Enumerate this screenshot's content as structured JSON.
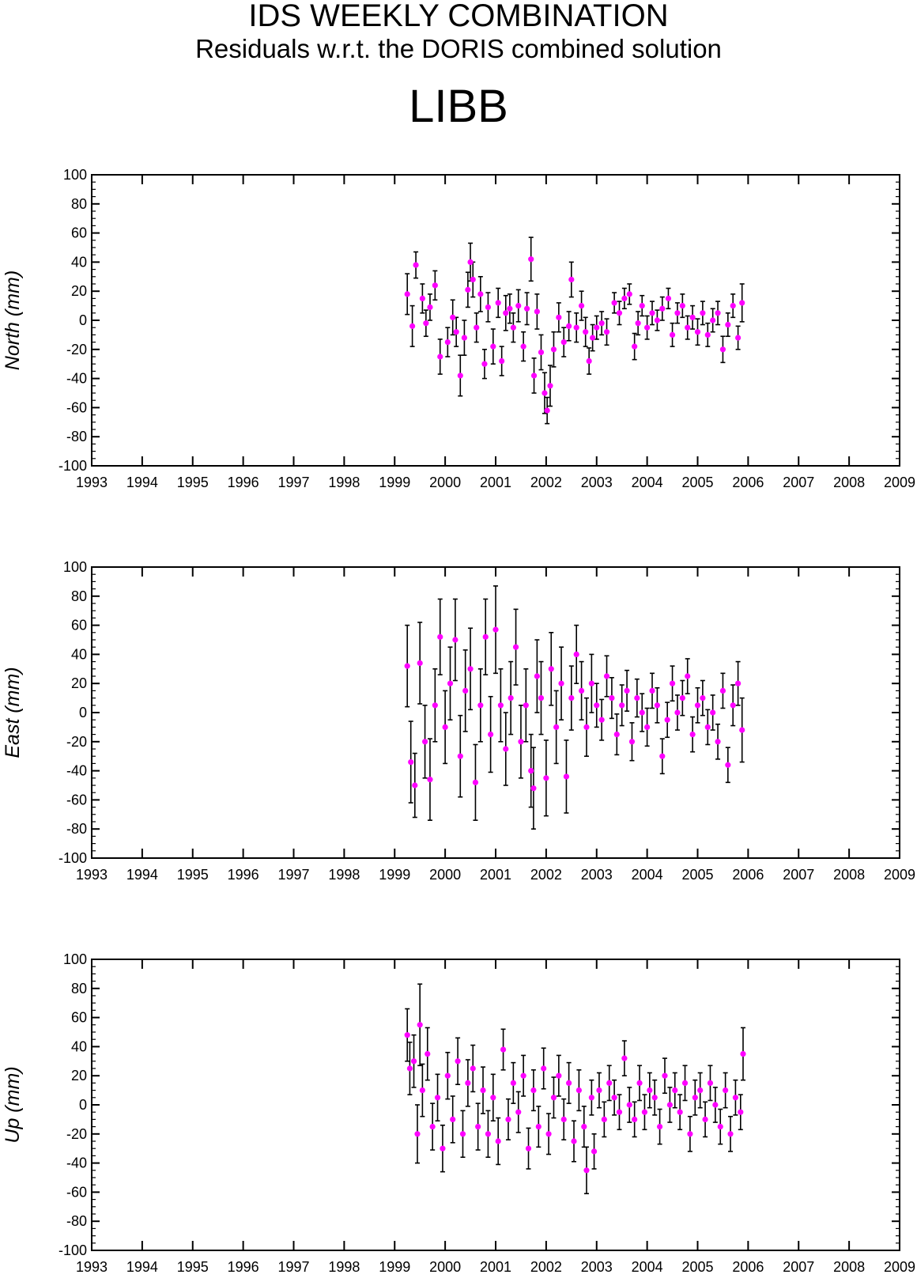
{
  "header": {
    "title": "IDS WEEKLY COMBINATION",
    "subtitle": "Residuals w.r.t. the DORIS combined solution",
    "station": "LIBB"
  },
  "colors": {
    "marker": "#ff00ff",
    "errorbar": "#000000",
    "axis": "#000000",
    "background": "#ffffff"
  },
  "chart_data": [
    {
      "type": "scatter",
      "component": "north",
      "ylabel": "North (mm)",
      "xlim": [
        1993,
        2009
      ],
      "ylim": [
        -100,
        100
      ],
      "x_ticks": [
        1993,
        1994,
        1995,
        1996,
        1997,
        1998,
        1999,
        2000,
        2001,
        2002,
        2003,
        2004,
        2005,
        2006,
        2007,
        2008,
        2009
      ],
      "y_ticks": [
        -100,
        -80,
        -60,
        -40,
        -20,
        0,
        20,
        40,
        60,
        80,
        100
      ],
      "grid": false,
      "series": [
        {
          "x": [
            1999.25,
            1999.35,
            1999.42,
            1999.55,
            1999.62,
            1999.7,
            1999.8,
            1999.9,
            2000.05,
            2000.15,
            2000.22,
            2000.3,
            2000.38,
            2000.45,
            2000.5,
            2000.55,
            2000.62,
            2000.7,
            2000.78,
            2000.85,
            2000.95,
            2001.05,
            2001.12,
            2001.2,
            2001.28,
            2001.35,
            2001.45,
            2001.55,
            2001.62,
            2001.7,
            2001.76,
            2001.82,
            2001.9,
            2001.97,
            2002.02,
            2002.08,
            2002.15,
            2002.25,
            2002.35,
            2002.45,
            2002.5,
            2002.6,
            2002.7,
            2002.78,
            2002.85,
            2002.92,
            2003.0,
            2003.1,
            2003.2,
            2003.35,
            2003.45,
            2003.55,
            2003.65,
            2003.75,
            2003.82,
            2003.9,
            2004.0,
            2004.1,
            2004.2,
            2004.3,
            2004.42,
            2004.5,
            2004.6,
            2004.7,
            2004.8,
            2004.9,
            2005.0,
            2005.1,
            2005.2,
            2005.3,
            2005.4,
            2005.5,
            2005.6,
            2005.7,
            2005.8,
            2005.88
          ],
          "y": [
            18,
            -4,
            38,
            15,
            -2,
            9,
            24,
            -25,
            -15,
            2,
            -8,
            -38,
            -12,
            21,
            40,
            28,
            -5,
            18,
            -30,
            9,
            -18,
            12,
            -28,
            5,
            8,
            -5,
            10,
            -18,
            8,
            42,
            -38,
            6,
            -22,
            -50,
            -62,
            -45,
            -20,
            2,
            -15,
            -4,
            28,
            -5,
            10,
            -8,
            -28,
            -12,
            -5,
            -2,
            -8,
            12,
            5,
            15,
            18,
            -18,
            -2,
            10,
            -5,
            5,
            0,
            8,
            15,
            -10,
            5,
            10,
            -5,
            2,
            -8,
            5,
            -10,
            0,
            5,
            -20,
            -3,
            10,
            -12,
            12
          ],
          "err": [
            14,
            14,
            9,
            10,
            9,
            9,
            10,
            12,
            10,
            12,
            10,
            14,
            12,
            12,
            13,
            12,
            10,
            12,
            10,
            10,
            12,
            10,
            10,
            12,
            10,
            10,
            11,
            10,
            11,
            15,
            12,
            12,
            12,
            14,
            9,
            14,
            12,
            10,
            10,
            10,
            12,
            10,
            10,
            10,
            9,
            9,
            8,
            8,
            9,
            7,
            8,
            7,
            7,
            9,
            8,
            7,
            8,
            8,
            7,
            8,
            7,
            8,
            7,
            8,
            8,
            8,
            9,
            8,
            8,
            8,
            8,
            9,
            8,
            8,
            8,
            13
          ]
        }
      ]
    },
    {
      "type": "scatter",
      "component": "east",
      "ylabel": "East (mm)",
      "xlim": [
        1993,
        2009
      ],
      "ylim": [
        -100,
        100
      ],
      "x_ticks": [
        1993,
        1994,
        1995,
        1996,
        1997,
        1998,
        1999,
        2000,
        2001,
        2002,
        2003,
        2004,
        2005,
        2006,
        2007,
        2008,
        2009
      ],
      "y_ticks": [
        -100,
        -80,
        -60,
        -40,
        -20,
        0,
        20,
        40,
        60,
        80,
        100
      ],
      "grid": false,
      "series": [
        {
          "x": [
            1999.25,
            1999.32,
            1999.4,
            1999.5,
            1999.6,
            1999.7,
            1999.8,
            1999.9,
            2000.0,
            2000.1,
            2000.2,
            2000.3,
            2000.4,
            2000.5,
            2000.6,
            2000.7,
            2000.8,
            2000.9,
            2001.0,
            2001.1,
            2001.2,
            2001.3,
            2001.4,
            2001.5,
            2001.6,
            2001.7,
            2001.75,
            2001.82,
            2001.9,
            2002.0,
            2002.1,
            2002.2,
            2002.3,
            2002.4,
            2002.5,
            2002.6,
            2002.7,
            2002.8,
            2002.9,
            2003.0,
            2003.1,
            2003.2,
            2003.3,
            2003.4,
            2003.5,
            2003.6,
            2003.7,
            2003.8,
            2003.9,
            2004.0,
            2004.1,
            2004.2,
            2004.3,
            2004.4,
            2004.5,
            2004.6,
            2004.7,
            2004.8,
            2004.9,
            2005.0,
            2005.1,
            2005.2,
            2005.3,
            2005.4,
            2005.5,
            2005.6,
            2005.7,
            2005.8,
            2005.88
          ],
          "y": [
            32,
            -34,
            -50,
            34,
            -20,
            -46,
            5,
            52,
            -10,
            20,
            50,
            -30,
            15,
            30,
            -48,
            5,
            52,
            -15,
            57,
            5,
            -25,
            10,
            45,
            -20,
            5,
            -40,
            -52,
            25,
            10,
            -45,
            30,
            -10,
            20,
            -44,
            10,
            40,
            15,
            -10,
            20,
            5,
            -5,
            25,
            10,
            -15,
            5,
            15,
            -20,
            10,
            0,
            -10,
            15,
            5,
            -30,
            -5,
            20,
            0,
            10,
            25,
            -15,
            5,
            10,
            -10,
            0,
            -20,
            15,
            -36,
            5,
            20,
            -12
          ],
          "err": [
            28,
            28,
            22,
            28,
            25,
            28,
            25,
            26,
            25,
            25,
            28,
            28,
            28,
            28,
            26,
            25,
            26,
            26,
            30,
            25,
            25,
            25,
            26,
            25,
            25,
            25,
            28,
            25,
            25,
            26,
            25,
            25,
            25,
            25,
            22,
            20,
            20,
            20,
            20,
            15,
            14,
            14,
            14,
            14,
            14,
            14,
            13,
            13,
            13,
            13,
            12,
            12,
            12,
            12,
            12,
            12,
            12,
            12,
            12,
            12,
            12,
            12,
            12,
            12,
            12,
            12,
            14,
            15,
            22
          ]
        }
      ]
    },
    {
      "type": "scatter",
      "component": "up",
      "ylabel": "Up (mm)",
      "xlim": [
        1993,
        2009
      ],
      "ylim": [
        -100,
        100
      ],
      "x_ticks": [
        1993,
        1994,
        1995,
        1996,
        1997,
        1998,
        1999,
        2000,
        2001,
        2002,
        2003,
        2004,
        2005,
        2006,
        2007,
        2008,
        2009
      ],
      "y_ticks": [
        -100,
        -80,
        -60,
        -40,
        -20,
        0,
        20,
        40,
        60,
        80,
        100
      ],
      "grid": false,
      "series": [
        {
          "x": [
            1999.25,
            1999.3,
            1999.38,
            1999.45,
            1999.5,
            1999.55,
            1999.65,
            1999.75,
            1999.85,
            1999.95,
            2000.05,
            2000.15,
            2000.25,
            2000.35,
            2000.45,
            2000.55,
            2000.65,
            2000.75,
            2000.85,
            2000.95,
            2001.05,
            2001.15,
            2001.25,
            2001.35,
            2001.45,
            2001.55,
            2001.65,
            2001.75,
            2001.85,
            2001.95,
            2002.05,
            2002.15,
            2002.25,
            2002.35,
            2002.45,
            2002.55,
            2002.65,
            2002.75,
            2002.8,
            2002.9,
            2002.95,
            2003.05,
            2003.15,
            2003.25,
            2003.35,
            2003.45,
            2003.55,
            2003.65,
            2003.75,
            2003.85,
            2003.95,
            2004.05,
            2004.15,
            2004.25,
            2004.35,
            2004.45,
            2004.55,
            2004.65,
            2004.75,
            2004.85,
            2004.95,
            2005.05,
            2005.15,
            2005.25,
            2005.35,
            2005.45,
            2005.55,
            2005.65,
            2005.75,
            2005.85,
            2005.9
          ],
          "y": [
            48,
            25,
            30,
            -20,
            55,
            10,
            35,
            -15,
            5,
            -30,
            20,
            -10,
            30,
            -20,
            15,
            25,
            -15,
            10,
            -20,
            5,
            -25,
            38,
            -10,
            15,
            -5,
            20,
            -30,
            10,
            -15,
            25,
            -20,
            5,
            20,
            -10,
            15,
            -25,
            10,
            -15,
            -45,
            5,
            -32,
            10,
            -10,
            15,
            5,
            -5,
            32,
            0,
            -10,
            15,
            -5,
            10,
            5,
            -15,
            20,
            0,
            10,
            -5,
            15,
            -20,
            5,
            10,
            -10,
            15,
            0,
            -15,
            10,
            -20,
            5,
            -5,
            35
          ],
          "err": [
            18,
            18,
            18,
            20,
            28,
            18,
            18,
            16,
            16,
            16,
            16,
            16,
            16,
            16,
            16,
            16,
            16,
            16,
            16,
            16,
            16,
            14,
            14,
            14,
            14,
            14,
            14,
            14,
            14,
            14,
            14,
            14,
            14,
            14,
            14,
            14,
            14,
            14,
            16,
            12,
            12,
            12,
            12,
            12,
            12,
            12,
            12,
            12,
            12,
            12,
            12,
            12,
            12,
            12,
            12,
            12,
            12,
            12,
            12,
            12,
            12,
            12,
            12,
            12,
            12,
            12,
            12,
            12,
            12,
            12,
            18
          ]
        }
      ]
    }
  ]
}
